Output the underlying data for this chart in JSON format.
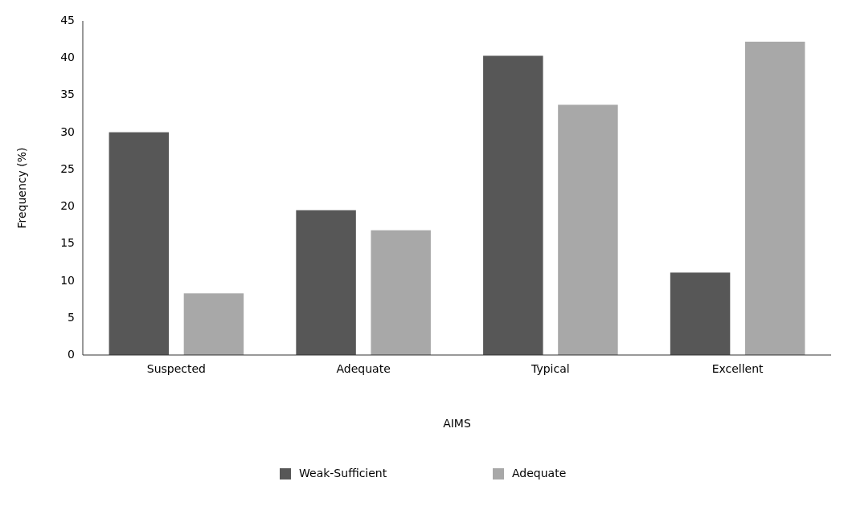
{
  "chart_data": {
    "type": "bar",
    "xlabel": "AIMS",
    "ylabel": "Frequency (%)",
    "categories": [
      "Suspected",
      "Adequate",
      "Typical",
      "Excellent"
    ],
    "series": [
      {
        "name": "Weak-Sufficient",
        "color": "#575757",
        "values": [
          30,
          19.5,
          40.3,
          11.1
        ]
      },
      {
        "name": "Adequate",
        "color": "#a8a8a8",
        "values": [
          8.3,
          16.8,
          33.7,
          42.2
        ]
      }
    ],
    "ylim": [
      0,
      45
    ],
    "yticks": [
      0,
      5,
      10,
      15,
      20,
      25,
      30,
      35,
      40,
      45
    ],
    "grid": false,
    "legend": "bottom"
  }
}
